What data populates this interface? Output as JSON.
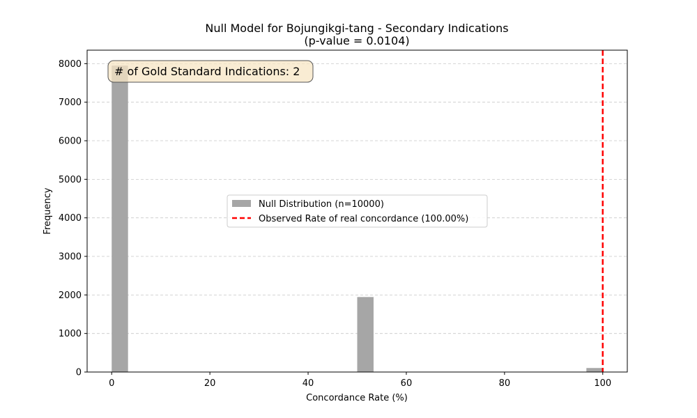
{
  "chart_data": {
    "type": "bar",
    "title": "Null Model for Bojungikgi-tang - Secondary Indications",
    "subtitle": "(p-value = 0.0104)",
    "xlabel": "Concordance Rate (%)",
    "ylabel": "Frequency",
    "xlim": [
      -5,
      105
    ],
    "ylim": [
      0,
      8350
    ],
    "xticks": [
      0,
      20,
      40,
      60,
      80,
      100
    ],
    "yticks": [
      0,
      1000,
      2000,
      3000,
      4000,
      5000,
      6000,
      7000,
      8000
    ],
    "grid": "horizontal-dashed",
    "bin_width": 3.33,
    "bins": [
      {
        "x": 0,
        "value": 7950
      },
      {
        "x": 50,
        "value": 1946
      },
      {
        "x": 96.67,
        "value": 104
      }
    ],
    "series": [
      {
        "name": "Null Distribution (n=10000)",
        "kind": "bar",
        "color": "#a6a6a6"
      },
      {
        "name": "Observed Rate of real concordance (100.00%)",
        "kind": "vline",
        "x": 100,
        "color": "#ff0000",
        "style": "dashed"
      }
    ],
    "legend_position": "center",
    "annotation": "# of Gold Standard Indications: 2",
    "annotation_position": "top-left"
  }
}
